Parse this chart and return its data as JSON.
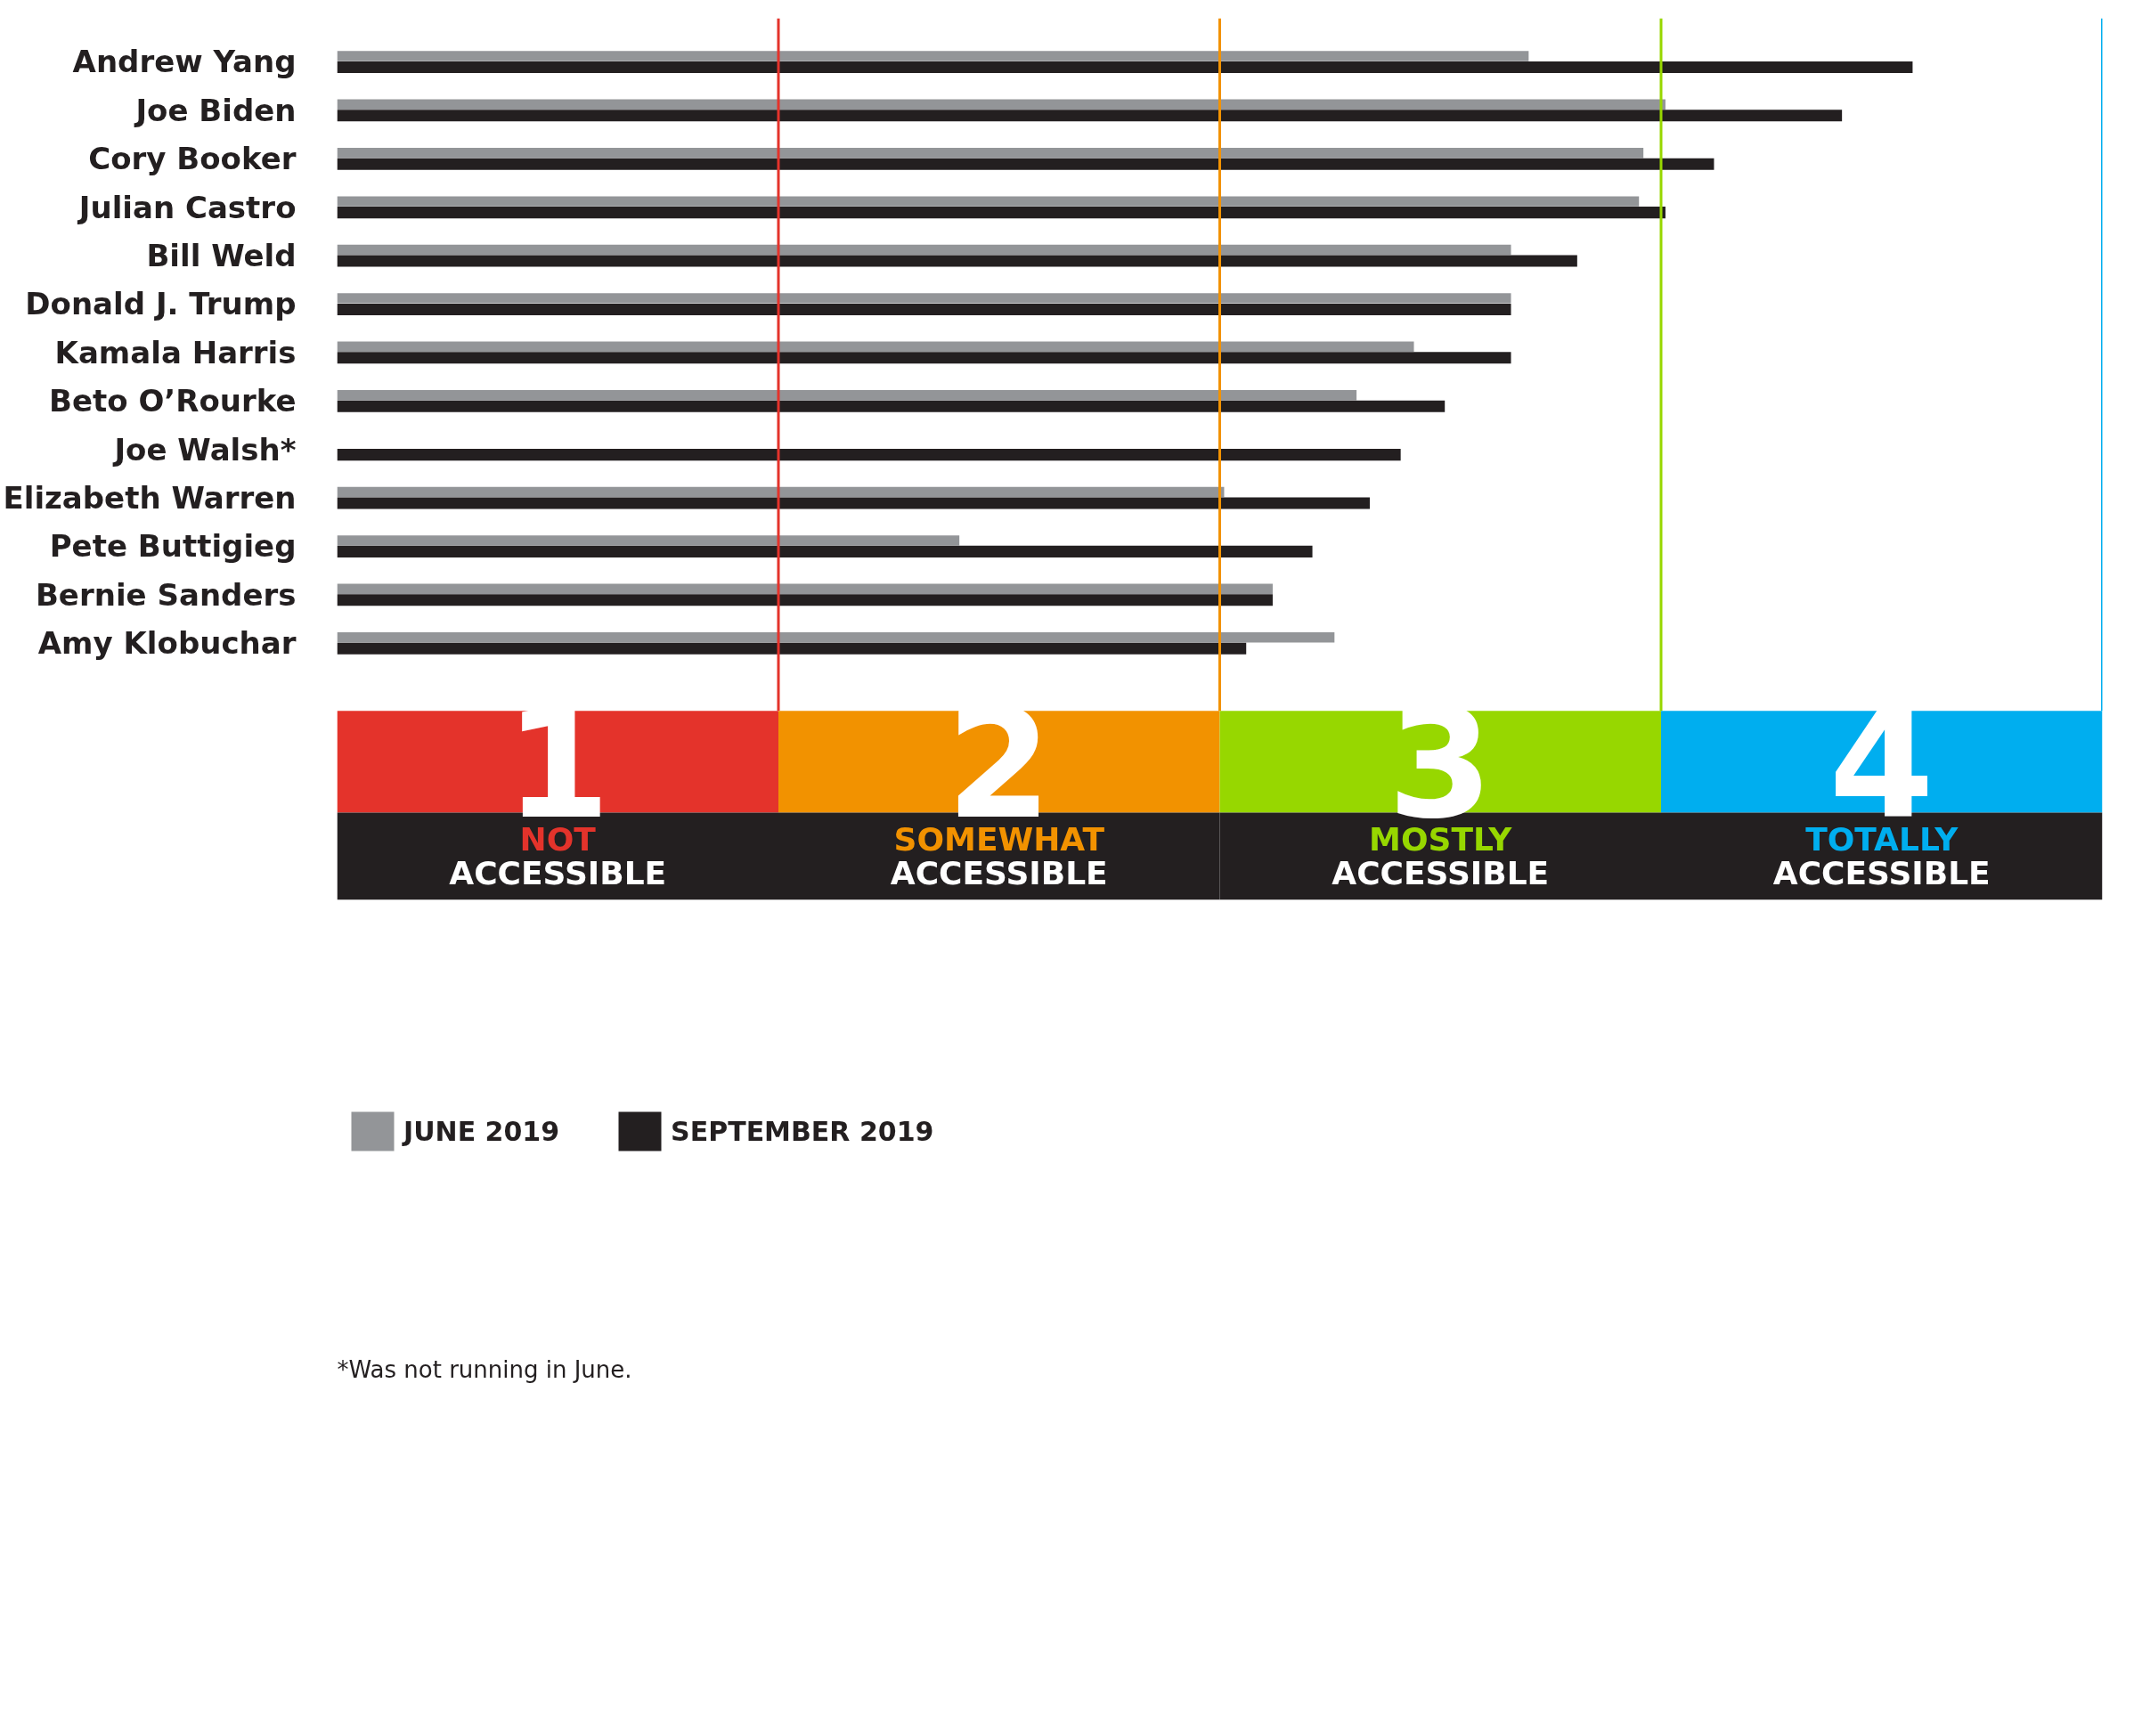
{
  "chart_data": {
    "type": "bar",
    "orientation": "horizontal",
    "categories": [
      "Andrew Yang",
      "Joe Biden",
      "Cory Booker",
      "Julian Castro",
      "Bill Weld",
      "Donald J. Trump",
      "Kamala Harris",
      "Beto O’Rourke",
      "Joe Walsh*",
      "Elizabeth Warren",
      "Pete Buttigieg",
      "Bernie Sanders",
      "Amy Klobuchar"
    ],
    "series": [
      {
        "name": "JUNE 2019",
        "color": "#939598",
        "values": [
          2.7,
          3.01,
          2.96,
          2.95,
          2.66,
          2.66,
          2.44,
          2.31,
          null,
          2.01,
          1.41,
          2.12,
          2.26
        ]
      },
      {
        "name": "SEPTEMBER 2019",
        "color": "#231f20",
        "values": [
          3.57,
          3.41,
          3.12,
          3.01,
          2.81,
          2.66,
          2.66,
          2.51,
          2.41,
          2.34,
          2.21,
          2.12,
          2.06
        ]
      }
    ],
    "xlim": [
      0,
      4
    ],
    "xticks": [
      {
        "value": 0.5,
        "label": "1"
      },
      {
        "value": 1.5,
        "label": "2"
      },
      {
        "value": 2.5,
        "label": "3"
      },
      {
        "value": 3.5,
        "label": "4"
      }
    ],
    "ref_lines": [
      {
        "axis": "x",
        "value": 1,
        "color": "#e4332b"
      },
      {
        "axis": "x",
        "value": 2,
        "color": "#f29200"
      },
      {
        "axis": "x",
        "value": 3,
        "color": "#97d700"
      },
      {
        "axis": "x",
        "value": 4,
        "color": "#00aeef"
      }
    ],
    "legend": "bottom left",
    "grid": false,
    "annotations": [
      "NOT ACCESSIBLE",
      "SOMEWHAT ACCESSIBLE",
      "MOSTLY ACCESSIBLE",
      "TOTALLY ACCESSIBLE",
      "*Was not running in June."
    ]
  }
}
